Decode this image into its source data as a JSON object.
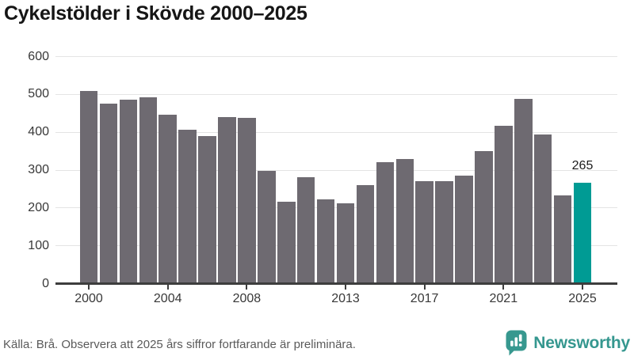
{
  "page": {
    "title": "Cykelstölder i Skövde 2000–2025"
  },
  "chart_data": {
    "type": "bar",
    "title": "Cykelstölder i Skövde 2000–2025",
    "categories": [
      "2000",
      "2001",
      "2002",
      "2003",
      "2004",
      "2005",
      "2006",
      "2007",
      "2008",
      "2009",
      "2010",
      "2011",
      "2012",
      "2013",
      "2014",
      "2015",
      "2016",
      "2017",
      "2018",
      "2019",
      "2020",
      "2021",
      "2022",
      "2023",
      "2024",
      "2025"
    ],
    "values": [
      508,
      475,
      486,
      491,
      445,
      406,
      388,
      440,
      437,
      297,
      215,
      280,
      222,
      211,
      259,
      320,
      328,
      270,
      270,
      285,
      350,
      416,
      487,
      393,
      233,
      265
    ],
    "xlabel": "",
    "ylabel": "",
    "ylim": [
      0,
      600
    ],
    "yticks": [
      0,
      100,
      200,
      300,
      400,
      500,
      600
    ],
    "xtick_indices": [
      0,
      4,
      8,
      13,
      17,
      21,
      25
    ],
    "xtick_labels": [
      "2000",
      "2004",
      "2008",
      "2013",
      "2017",
      "2021",
      "2025"
    ],
    "grid": true,
    "legend": "none",
    "bar_color": "#6e6a71",
    "highlight_index": 25,
    "highlight_color": "#009b94",
    "value_label": {
      "index": 25,
      "text": "265"
    }
  },
  "footer": {
    "source_note": "Källa: Brå. Observera att 2025 års siffror fortfarande är preliminära.",
    "brand_name": "Newsworthy"
  },
  "colors": {
    "bar": "#6e6a71",
    "highlight": "#009b94",
    "gridline": "#e4e4e4",
    "axis": "#3d3d3d",
    "brand_teal": "#35978f",
    "text_dark": "#161616",
    "text_axis": "#383838",
    "text_source": "#5a5a5a"
  }
}
